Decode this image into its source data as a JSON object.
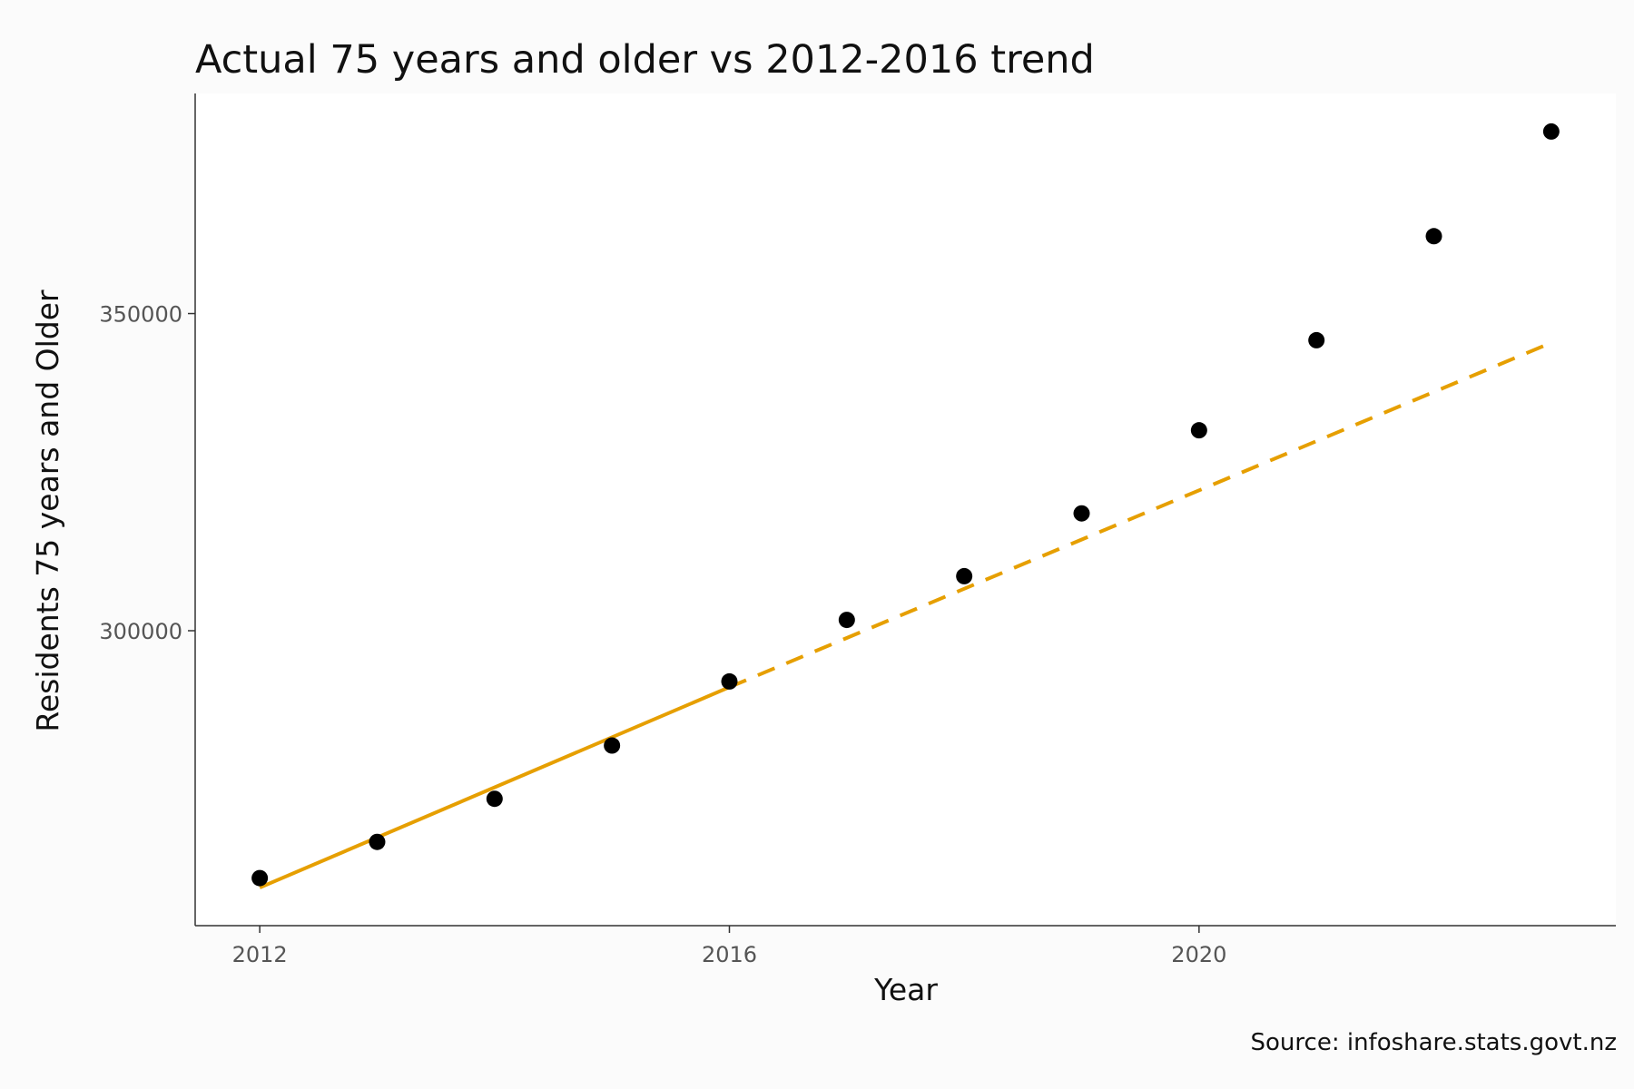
{
  "chart_data": {
    "type": "scatter",
    "title": "Actual 75 years and older vs 2012-2016 trend",
    "xlabel": "Year",
    "ylabel": "Residents 75 years and Older",
    "caption": "Source: infoshare.stats.govt.nz",
    "xlim": [
      2011.45,
      2023.55
    ],
    "ylim": [
      253500,
      384700
    ],
    "x_ticks": [
      2012,
      2016,
      2020
    ],
    "y_ticks": [
      300000,
      350000
    ],
    "x_tick_labels": [
      "2012",
      "2016",
      "2020"
    ],
    "y_tick_labels": [
      "300000",
      "350000"
    ],
    "grid": false,
    "series": [
      {
        "type": "scatter",
        "color": "#000000",
        "x": [
          2012,
          2013,
          2014,
          2015,
          2016,
          2017,
          2018,
          2019,
          2020,
          2021,
          2022,
          2023
        ],
        "values": [
          261000,
          266700,
          273500,
          281900,
          292000,
          301700,
          308600,
          318500,
          331600,
          345800,
          362200,
          378700
        ]
      },
      {
        "type": "line",
        "style": "solid",
        "color": "#E69F00",
        "x": [
          2012,
          2016
        ],
        "values": [
          259500,
          291100
        ]
      },
      {
        "type": "line",
        "style": "dashed",
        "color": "#E69F00",
        "x": [
          2016,
          2023
        ],
        "values": [
          291100,
          345400
        ]
      }
    ]
  }
}
